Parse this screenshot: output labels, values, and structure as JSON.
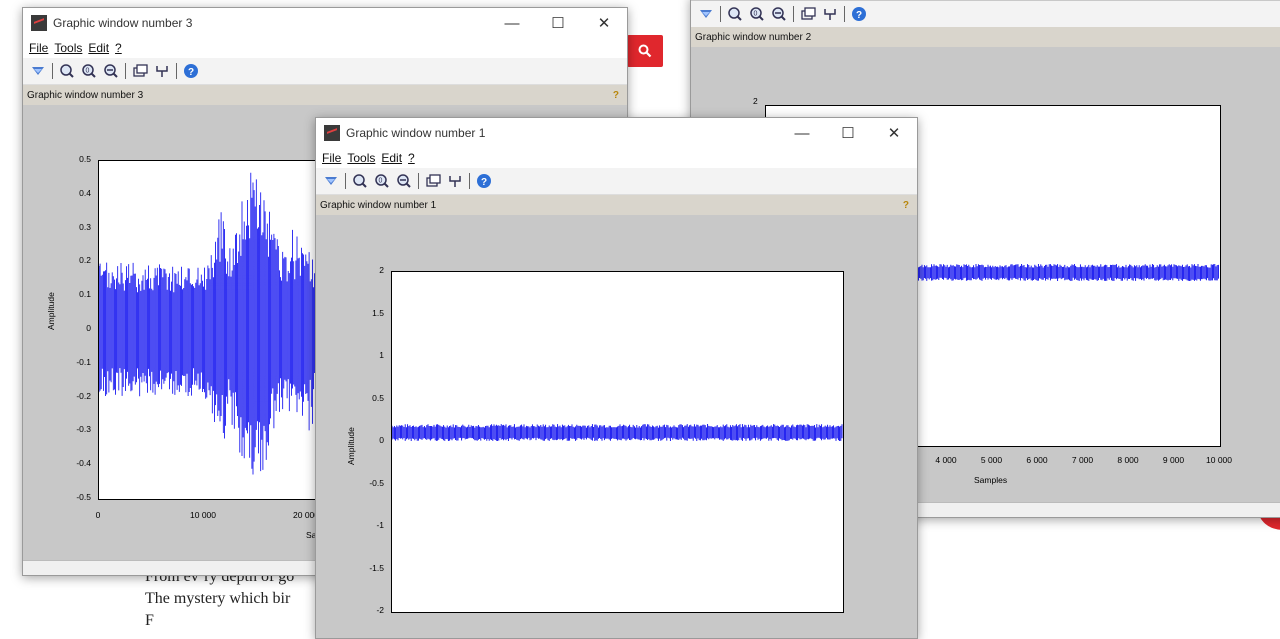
{
  "background_page": {
    "text_lines": [
      "From ev’ry depth of go",
      "The mystery which bir",
      "F"
    ]
  },
  "windows": {
    "w3": {
      "title": "Graphic window number 3",
      "menu": [
        "File",
        "Tools",
        "Edit",
        "?"
      ],
      "info": "Graphic window number 3",
      "help": "?",
      "ylabel": "Amplitude",
      "xlabel_partial": "Sa",
      "yticks": [
        "0.5",
        "0.4",
        "0.3",
        "0.2",
        "0.1",
        "0",
        "-0.1",
        "-0.2",
        "-0.3",
        "-0.4",
        "-0.5"
      ],
      "xticks": [
        "0",
        "10 000",
        "20 000"
      ]
    },
    "w2": {
      "info": "Graphic window number 2",
      "ytick_top": "2",
      "xticks": [
        "4 000",
        "5 000",
        "6 000",
        "7 000",
        "8 000",
        "9 000",
        "10 000"
      ],
      "xlabel": "Samples"
    },
    "w1": {
      "title": "Graphic window number 1",
      "menu": [
        "File",
        "Tools",
        "Edit",
        "?"
      ],
      "info": "Graphic window number 1",
      "help": "?",
      "ylabel": "Amplitude",
      "yticks": [
        "2",
        "1.5",
        "1",
        "0.5",
        "0",
        "-0.5",
        "-1",
        "-1.5",
        "-2"
      ]
    }
  },
  "window_controls": {
    "minimize": "—",
    "maximize": "☐",
    "close": "✕"
  },
  "chart_data": [
    {
      "type": "line",
      "window": "Graphic window number 3",
      "ylabel": "Amplitude",
      "ylim": [
        -0.5,
        0.5
      ],
      "x_start": 0,
      "description_values": {
        "baseline_envelope": 0.2,
        "burst_peak": 0.48,
        "burst_trough": -0.49,
        "burst_center_sample": 16000
      }
    },
    {
      "type": "line",
      "window": "Graphic window number 2",
      "xlabel": "Samples",
      "x_max": 10000,
      "ytick_top": 2,
      "band": [
        -0.1,
        0.2
      ]
    },
    {
      "type": "line",
      "window": "Graphic window number 1",
      "ylabel": "Amplitude",
      "ylim": [
        -2,
        2
      ],
      "xlim": [
        0,
        10000
      ],
      "band": [
        -0.05,
        0.2
      ]
    }
  ]
}
